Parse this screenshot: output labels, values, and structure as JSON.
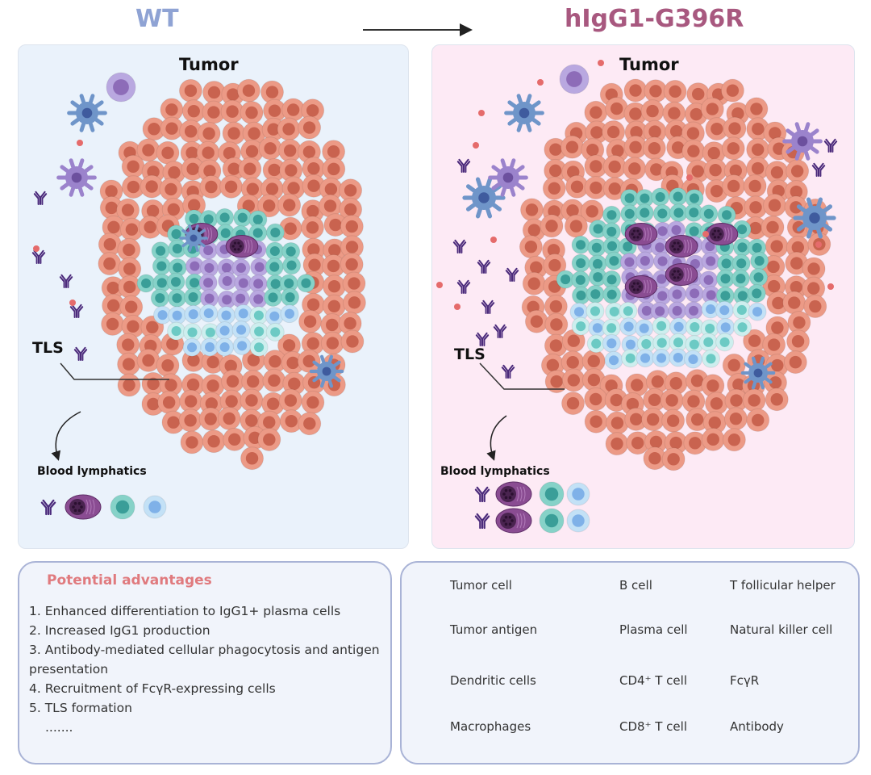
{
  "header": {
    "left_title": "WT",
    "right_title": "hIgG1-G396R",
    "left_color": "#8fa3d4",
    "right_color": "#a8587f"
  },
  "panels": {
    "left": {
      "tumor_label": "Tumor",
      "tls_label": "TLS",
      "blood_label": "Blood lymphatics",
      "bg": "#eaf2fb"
    },
    "right": {
      "tumor_label": "Tumor",
      "tls_label": "TLS",
      "blood_label": "Blood lymphatics",
      "bg": "#fdeaf5"
    }
  },
  "advantages": {
    "title": "Potential advantages",
    "items": [
      "1. Enhanced differentiation to IgG1+ plasma cells",
      "2. Increased IgG1 production",
      "3. Antibody-mediated cellular phagocytosis and antigen presentation",
      "4. Recruitment of FcγR-expressing cells",
      "5. TLS formation",
      "......."
    ]
  },
  "legend": {
    "items": [
      {
        "label": "Tumor cell",
        "icon": "tumor-cell"
      },
      {
        "label": "B cell",
        "icon": "b-cell"
      },
      {
        "label": "T follicular helper",
        "icon": "tfh-cell"
      },
      {
        "label": "Tumor antigen",
        "icon": "tumor-antigen"
      },
      {
        "label": "Plasma cell",
        "icon": "plasma-cell"
      },
      {
        "label": "Natural killer cell",
        "icon": "nk-cell"
      },
      {
        "label": "Dendritic cells",
        "icon": "dendritic-cell"
      },
      {
        "label": "CD4⁺ T cell",
        "icon": "cd4-t-cell"
      },
      {
        "label": "FcγR",
        "icon": "fcgr"
      },
      {
        "label": "Macrophages",
        "icon": "macrophage"
      },
      {
        "label": "CD8⁺ T cell",
        "icon": "cd8-t-cell"
      },
      {
        "label": "Antibody",
        "icon": "antibody"
      }
    ]
  }
}
